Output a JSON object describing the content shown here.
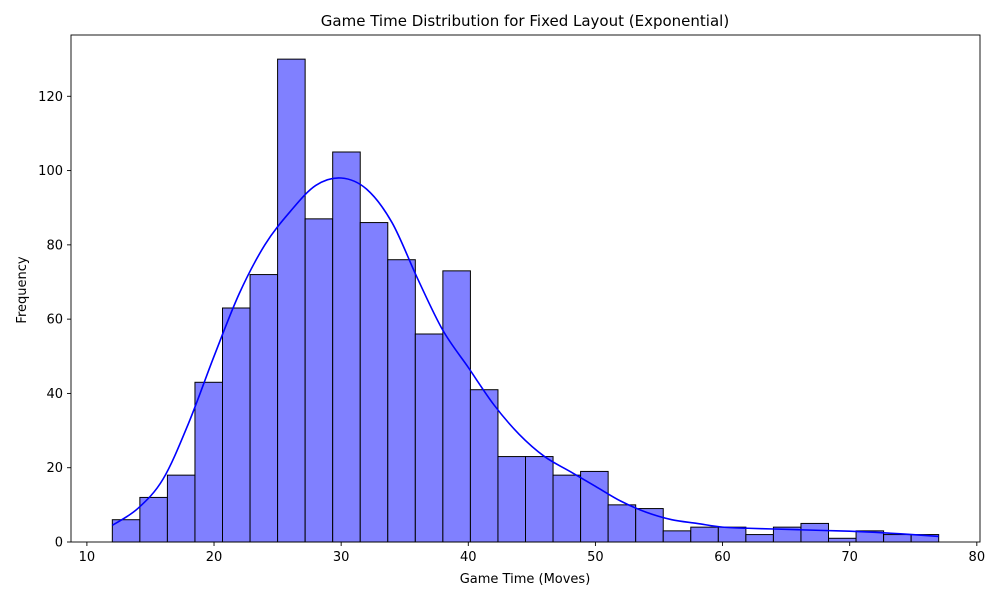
{
  "chart_data": {
    "type": "bar",
    "subtype": "histogram-with-kde",
    "title": "Game Time Distribution for Fixed Layout (Exponential)",
    "xlabel": "Game Time (Moves)",
    "ylabel": "Frequency",
    "xlim": [
      8.75,
      80.25
    ],
    "ylim": [
      0,
      136.5
    ],
    "xticks": [
      10,
      20,
      30,
      40,
      50,
      60,
      70,
      80
    ],
    "yticks": [
      0,
      20,
      40,
      60,
      80,
      100,
      120
    ],
    "bin_start": 12,
    "bin_width": 2.1667,
    "values": [
      6,
      12,
      18,
      43,
      63,
      72,
      130,
      87,
      105,
      86,
      76,
      56,
      73,
      41,
      23,
      23,
      18,
      19,
      10,
      9,
      3,
      4,
      4,
      2,
      4,
      5,
      1,
      3,
      2,
      2
    ],
    "bar_color": "#8080ff",
    "bar_edge_color": "#000000",
    "kde": {
      "color": "#0000ff",
      "x": [
        12,
        14,
        16,
        18,
        20,
        22,
        24,
        26,
        28,
        30,
        32,
        34,
        36,
        38,
        40,
        42,
        44,
        46,
        48,
        50,
        52,
        54,
        56,
        58,
        60,
        62,
        64,
        66,
        68,
        70,
        72,
        74,
        77
      ],
      "y": [
        4.5,
        9,
        17,
        32,
        50,
        67,
        80,
        89,
        96,
        98,
        95,
        86,
        71,
        57,
        47,
        37,
        29,
        23,
        19,
        15,
        11,
        8,
        6,
        5,
        4,
        3.7,
        3.5,
        3.3,
        3.1,
        2.9,
        2.6,
        2.2,
        1.5
      ]
    },
    "grid": false,
    "legend": "none"
  }
}
